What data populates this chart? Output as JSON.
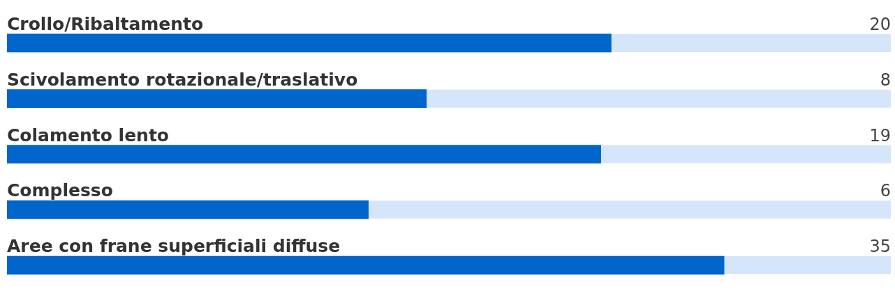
{
  "chart_data": {
    "type": "bar",
    "orientation": "horizontal",
    "categories": [
      "Crollo/Ribaltamento",
      "Scivolamento rotazionale/traslativo",
      "Colamento lento",
      "Complesso",
      "Aree con frane superficiali diffuse"
    ],
    "values": [
      20,
      8,
      19,
      6,
      35
    ],
    "color": "#0066cc",
    "log": "x",
    "xlim": [
      1,
      80
    ],
    "data_labels": true
  }
}
